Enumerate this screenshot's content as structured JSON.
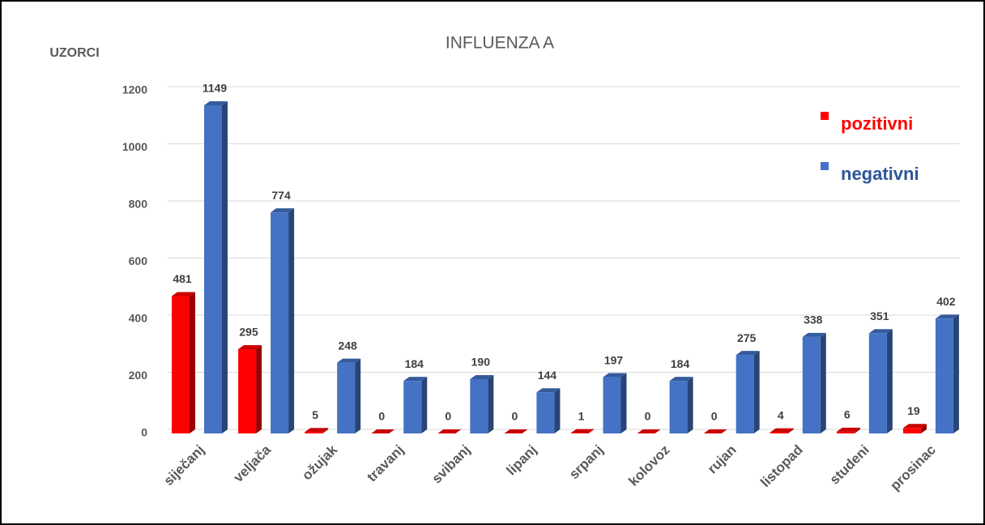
{
  "chart_data": {
    "type": "bar3d",
    "title": "INFLUENZA A",
    "y_label": "UZORCI",
    "categories": [
      "siječanj",
      "veljača",
      "ožujak",
      "travanj",
      "svibanj",
      "lipanj",
      "srpanj",
      "kolovoz",
      "rujan",
      "listopad",
      "studeni",
      "prosinac"
    ],
    "series": [
      {
        "name": "pozitivni",
        "color": "#ff0000",
        "values": [
          481,
          295,
          5,
          0,
          0,
          0,
          1,
          0,
          0,
          4,
          6,
          19
        ]
      },
      {
        "name": "negativni",
        "color": "#4472c4",
        "values": [
          1149,
          774,
          248,
          184,
          190,
          144,
          197,
          184,
          275,
          338,
          351,
          402
        ]
      }
    ],
    "ylim": [
      0,
      1200
    ],
    "yticks": [
      0,
      200,
      400,
      600,
      800,
      1000,
      1200
    ],
    "grid": true,
    "legend": "upper right"
  }
}
